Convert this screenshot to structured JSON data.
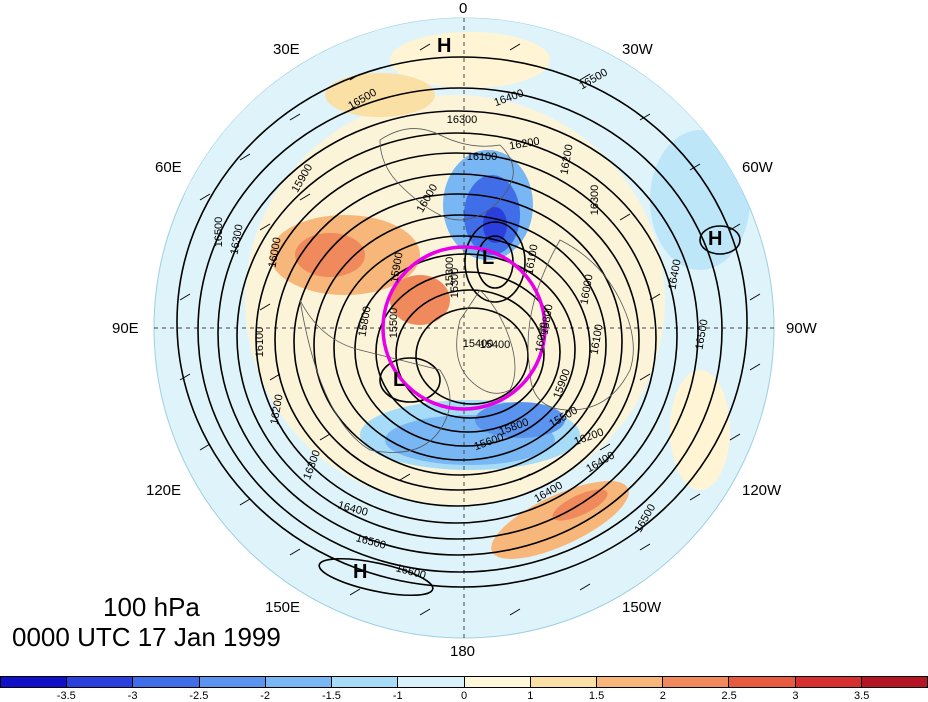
{
  "map": {
    "level": "100 hPa",
    "valid_time": "0000 UTC 17 Jan 1999",
    "projection": "north-polar-stereographic",
    "longitude_labels": [
      "0",
      "30W",
      "60W",
      "90W",
      "120W",
      "150W",
      "180",
      "150E",
      "120E",
      "90E",
      "60E",
      "30E"
    ],
    "pressure_centers": [
      "H",
      "H",
      "H",
      "L",
      "L"
    ],
    "contour_labels": [
      "16500",
      "16400",
      "16300",
      "16200",
      "16100",
      "16000",
      "15900",
      "15800",
      "15500",
      "15300",
      "15400",
      "16600",
      "16500",
      "16400",
      "16300",
      "16200",
      "16100",
      "16000",
      "15900",
      "15800",
      "16500",
      "16300",
      "16400",
      "16200",
      "16100",
      "16000",
      "16400",
      "16500",
      "16500",
      "16300",
      "16200",
      "16100",
      "16000",
      "15900",
      "15800",
      "15600",
      "15500",
      "16400",
      "16500",
      "15400",
      "15300"
    ],
    "highlight_circle_color": "#e800e8",
    "colorbar": {
      "ticks": [
        "-3.5",
        "-3",
        "-2.5",
        "-2",
        "-1.5",
        "-1",
        "0",
        "1",
        "1.5",
        "2",
        "2.5",
        "3",
        "3.5"
      ],
      "colors": [
        "#1010c8",
        "#2a3fdc",
        "#3f6ee8",
        "#5b94ef",
        "#79b6f4",
        "#a6dcf8",
        "#d7f2fb",
        "#fff8d8",
        "#fbe0a6",
        "#f7b77a",
        "#f08a5c",
        "#e65a3f",
        "#d62f2f",
        "#b51424"
      ]
    }
  }
}
